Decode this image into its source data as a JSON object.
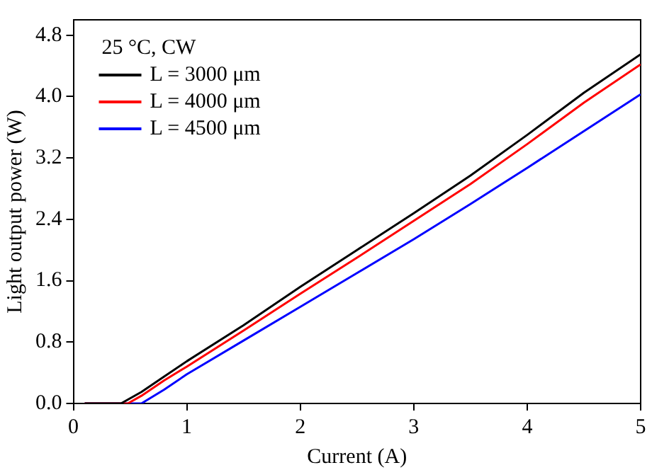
{
  "chart_data": {
    "type": "line",
    "xlabel": "Current (A)",
    "ylabel": "Light output power (W)",
    "legend_title": "25 °C, CW",
    "legend": "top left",
    "grid": false,
    "line_style": "solid",
    "marker": "none",
    "xlim": [
      0,
      5
    ],
    "xticks": [
      0,
      1,
      2,
      3,
      4,
      5
    ],
    "ylim": [
      0,
      5
    ],
    "yticks": [
      {
        "value": 0,
        "label": "0.0"
      },
      {
        "value": 0.8,
        "label": "0.8"
      },
      {
        "value": 1.6,
        "label": "1.6"
      },
      {
        "value": 2.4,
        "label": "2.4"
      },
      {
        "value": 3.2,
        "label": "3.2"
      },
      {
        "value": 4.0,
        "label": "4.0"
      },
      {
        "value": 4.8,
        "label": "4.8"
      }
    ],
    "series": [
      {
        "name": "L = 3000 μm",
        "color": "#000000",
        "x": [
          0.1,
          0.42,
          0.6,
          0.8,
          1.0,
          1.5,
          2.0,
          2.5,
          3.0,
          3.5,
          4.0,
          4.5,
          5.0
        ],
        "values": [
          0,
          0,
          0.15,
          0.35,
          0.55,
          1.02,
          1.52,
          2.0,
          2.48,
          2.97,
          3.5,
          4.05,
          4.55
        ]
      },
      {
        "name": "L = 4000 μm",
        "color": "#ff0000",
        "x": [
          0.1,
          0.48,
          0.6,
          0.8,
          1.0,
          1.5,
          2.0,
          2.5,
          3.0,
          3.5,
          4.0,
          4.5,
          5.0
        ],
        "values": [
          0,
          0,
          0.1,
          0.3,
          0.48,
          0.95,
          1.43,
          1.9,
          2.38,
          2.86,
          3.38,
          3.92,
          4.42
        ]
      },
      {
        "name": "L = 4500 μm",
        "color": "#0000ff",
        "x": [
          0.1,
          0.6,
          0.8,
          1.0,
          1.5,
          2.0,
          2.5,
          3.0,
          3.5,
          4.0,
          4.5,
          5.0
        ],
        "values": [
          0,
          0,
          0.18,
          0.38,
          0.82,
          1.26,
          1.7,
          2.14,
          2.6,
          3.07,
          3.55,
          4.03
        ]
      }
    ]
  }
}
